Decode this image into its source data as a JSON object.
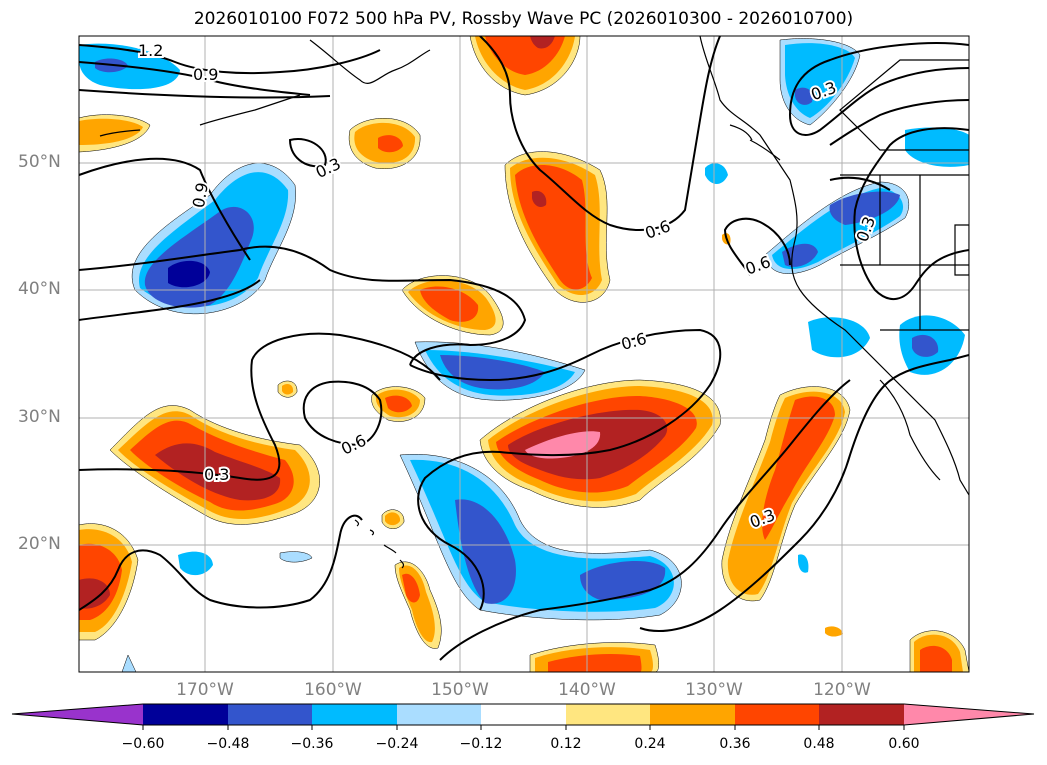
{
  "title": "2026010100 F072 500 hPa PV, Rossby Wave PC (2026010300 - 2026010700)",
  "lat_labels": [
    "50°N",
    "40°N",
    "30°N",
    "20°N"
  ],
  "lon_labels": [
    "170°W",
    "160°W",
    "150°W",
    "140°W",
    "130°W",
    "120°W"
  ],
  "contour_labels": [
    "1.2",
    "0.9",
    "0.9",
    "0.3",
    "0.6",
    "0.6",
    "0.6",
    "0.6",
    "0.3",
    "0.3",
    "0.3",
    "0.3"
  ],
  "colorbar": {
    "ticks": [
      "−0.60",
      "−0.48",
      "−0.36",
      "−0.24",
      "−0.12",
      "0.12",
      "0.24",
      "0.36",
      "0.48",
      "0.60"
    ],
    "colors": [
      "#9933cc",
      "#000099",
      "#3355cc",
      "#00bbff",
      "#aaddff",
      "#ffffff",
      "#ffe680",
      "#ffa500",
      "#ff4500",
      "#b22222",
      "#ff88aa"
    ]
  },
  "palette": {
    "neg1": "#aaddff",
    "neg2": "#00bbff",
    "neg3": "#3355cc",
    "neg4": "#000099",
    "pos1": "#ffe680",
    "pos2": "#ffa500",
    "pos3": "#ff4500",
    "pos4": "#b22222",
    "pos5": "#ff88aa",
    "grid": "#b0b0b0",
    "contour": "#000000"
  }
}
